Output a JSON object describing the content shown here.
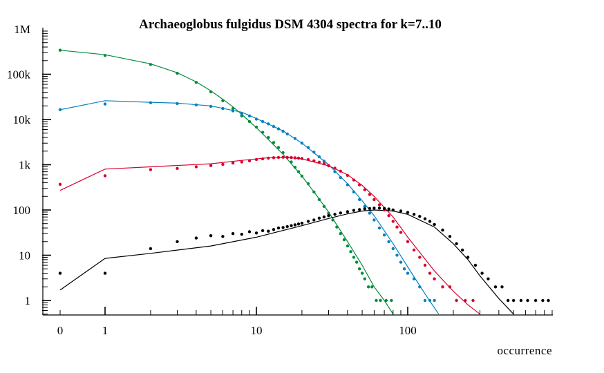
{
  "chart_data": {
    "type": "scatter",
    "title": "Archaeoglobus fulgidus DSM 4304 spectra for k=7..10",
    "xlabel": "occurrence",
    "ylabel": "",
    "x_scale": "log (with 0 at origin)",
    "y_scale": "log",
    "xlim": [
      0,
      1000
    ],
    "ylim": [
      0.5,
      1000000
    ],
    "x_ticks": [
      {
        "value": 0,
        "label": "0"
      },
      {
        "value": 1,
        "label": "1"
      },
      {
        "value": 10,
        "label": "10"
      },
      {
        "value": 100,
        "label": "100"
      }
    ],
    "y_ticks": [
      {
        "value": 1,
        "label": "1"
      },
      {
        "value": 10,
        "label": "10"
      },
      {
        "value": 100,
        "label": "100"
      },
      {
        "value": 1000,
        "label": "1k"
      },
      {
        "value": 10000,
        "label": "10k"
      },
      {
        "value": 100000,
        "label": "100k"
      },
      {
        "value": 1000000,
        "label": "1M"
      }
    ],
    "grid": false,
    "legend": "none",
    "series": [
      {
        "color": "#008c3a",
        "points": [
          [
            0,
            340000
          ],
          [
            1,
            260000
          ],
          [
            2,
            165000
          ],
          [
            3,
            105000
          ],
          [
            4,
            66000
          ],
          [
            5,
            41000
          ],
          [
            6,
            26000
          ],
          [
            7,
            17500
          ],
          [
            8,
            12000
          ],
          [
            9,
            9000
          ],
          [
            10,
            6800
          ],
          [
            11,
            5200
          ],
          [
            12,
            4000
          ],
          [
            13,
            3100
          ],
          [
            14,
            2400
          ],
          [
            15,
            1850
          ],
          [
            16,
            1450
          ],
          [
            17,
            1150
          ],
          [
            18,
            880
          ],
          [
            19,
            700
          ],
          [
            20,
            560
          ],
          [
            22,
            380
          ],
          [
            24,
            250
          ],
          [
            26,
            170
          ],
          [
            28,
            120
          ],
          [
            30,
            85
          ],
          [
            32,
            60
          ],
          [
            34,
            42
          ],
          [
            36,
            30
          ],
          [
            38,
            22
          ],
          [
            40,
            16
          ],
          [
            42,
            12
          ],
          [
            44,
            9
          ],
          [
            46,
            7
          ],
          [
            48,
            5
          ],
          [
            50,
            4
          ],
          [
            52,
            3
          ],
          [
            55,
            2
          ],
          [
            58,
            2
          ],
          [
            62,
            1
          ],
          [
            66,
            1
          ],
          [
            72,
            1
          ],
          [
            78,
            1
          ]
        ],
        "fit": [
          [
            0,
            340000
          ],
          [
            1,
            270000
          ],
          [
            2,
            170000
          ],
          [
            3,
            108000
          ],
          [
            4,
            68000
          ],
          [
            5,
            43000
          ],
          [
            6,
            28000
          ],
          [
            7,
            19000
          ],
          [
            8,
            13000
          ],
          [
            10,
            6600
          ],
          [
            12,
            3600
          ],
          [
            15,
            1700
          ],
          [
            20,
            560
          ],
          [
            25,
            210
          ],
          [
            30,
            90
          ],
          [
            40,
            20
          ],
          [
            50,
            6
          ],
          [
            60,
            2
          ],
          [
            70,
            1
          ],
          [
            80,
            0.5
          ]
        ]
      },
      {
        "color": "#0080c0",
        "points": [
          [
            0,
            16500
          ],
          [
            1,
            22000
          ],
          [
            2,
            23500
          ],
          [
            3,
            22500
          ],
          [
            4,
            21000
          ],
          [
            5,
            19500
          ],
          [
            6,
            17500
          ],
          [
            7,
            15500
          ],
          [
            8,
            13500
          ],
          [
            9,
            12000
          ],
          [
            10,
            10200
          ],
          [
            11,
            9000
          ],
          [
            12,
            8000
          ],
          [
            13,
            7000
          ],
          [
            14,
            6200
          ],
          [
            15,
            5500
          ],
          [
            16,
            4800
          ],
          [
            18,
            3800
          ],
          [
            20,
            3000
          ],
          [
            22,
            2400
          ],
          [
            24,
            1900
          ],
          [
            26,
            1500
          ],
          [
            28,
            1200
          ],
          [
            30,
            950
          ],
          [
            33,
            700
          ],
          [
            36,
            520
          ],
          [
            40,
            360
          ],
          [
            44,
            250
          ],
          [
            48,
            170
          ],
          [
            52,
            120
          ],
          [
            56,
            85
          ],
          [
            60,
            60
          ],
          [
            65,
            40
          ],
          [
            70,
            28
          ],
          [
            75,
            20
          ],
          [
            80,
            14
          ],
          [
            85,
            10
          ],
          [
            90,
            7
          ],
          [
            95,
            5
          ],
          [
            100,
            4
          ],
          [
            110,
            3
          ],
          [
            120,
            2
          ],
          [
            130,
            1
          ],
          [
            140,
            1
          ],
          [
            150,
            1
          ]
        ],
        "fit": [
          [
            0,
            16500
          ],
          [
            1,
            26000
          ],
          [
            2,
            24000
          ],
          [
            3,
            23000
          ],
          [
            5,
            20000
          ],
          [
            8,
            14500
          ],
          [
            10,
            10500
          ],
          [
            15,
            5600
          ],
          [
            20,
            3000
          ],
          [
            30,
            1000
          ],
          [
            40,
            380
          ],
          [
            50,
            160
          ],
          [
            60,
            75
          ],
          [
            80,
            18
          ],
          [
            100,
            5.5
          ],
          [
            130,
            1.4
          ],
          [
            160,
            0.5
          ]
        ]
      },
      {
        "color": "#d8002c",
        "points": [
          [
            0,
            370
          ],
          [
            1,
            570
          ],
          [
            2,
            780
          ],
          [
            3,
            830
          ],
          [
            4,
            900
          ],
          [
            5,
            960
          ],
          [
            6,
            1020
          ],
          [
            7,
            1090
          ],
          [
            8,
            1150
          ],
          [
            9,
            1220
          ],
          [
            10,
            1300
          ],
          [
            11,
            1350
          ],
          [
            12,
            1400
          ],
          [
            13,
            1430
          ],
          [
            14,
            1450
          ],
          [
            15,
            1460
          ],
          [
            16,
            1450
          ],
          [
            17,
            1440
          ],
          [
            18,
            1420
          ],
          [
            19,
            1400
          ],
          [
            20,
            1370
          ],
          [
            22,
            1300
          ],
          [
            24,
            1220
          ],
          [
            26,
            1140
          ],
          [
            28,
            1050
          ],
          [
            30,
            960
          ],
          [
            33,
            840
          ],
          [
            36,
            720
          ],
          [
            40,
            580
          ],
          [
            44,
            460
          ],
          [
            48,
            360
          ],
          [
            52,
            280
          ],
          [
            56,
            220
          ],
          [
            60,
            170
          ],
          [
            65,
            130
          ],
          [
            70,
            100
          ],
          [
            75,
            75
          ],
          [
            80,
            56
          ],
          [
            85,
            42
          ],
          [
            90,
            32
          ],
          [
            100,
            20
          ],
          [
            110,
            13
          ],
          [
            120,
            9
          ],
          [
            130,
            6
          ],
          [
            140,
            4
          ],
          [
            150,
            3
          ],
          [
            170,
            2
          ],
          [
            190,
            2
          ],
          [
            210,
            1
          ],
          [
            240,
            1
          ],
          [
            270,
            1
          ]
        ],
        "fit": [
          [
            0,
            270
          ],
          [
            1,
            800
          ],
          [
            2,
            900
          ],
          [
            5,
            1050
          ],
          [
            8,
            1250
          ],
          [
            12,
            1430
          ],
          [
            16,
            1450
          ],
          [
            20,
            1350
          ],
          [
            30,
            950
          ],
          [
            40,
            600
          ],
          [
            50,
            350
          ],
          [
            60,
            200
          ],
          [
            80,
            70
          ],
          [
            100,
            25
          ],
          [
            150,
            4.5
          ],
          [
            200,
            1.6
          ],
          [
            250,
            0.8
          ],
          [
            300,
            0.5
          ]
        ]
      },
      {
        "color": "#000000",
        "points": [
          [
            0,
            4
          ],
          [
            1,
            4
          ],
          [
            2,
            14
          ],
          [
            3,
            20
          ],
          [
            4,
            24
          ],
          [
            5,
            27
          ],
          [
            6,
            26
          ],
          [
            7,
            30
          ],
          [
            8,
            29
          ],
          [
            9,
            33
          ],
          [
            10,
            31
          ],
          [
            11,
            35
          ],
          [
            12,
            34
          ],
          [
            13,
            37
          ],
          [
            14,
            40
          ],
          [
            15,
            41
          ],
          [
            16,
            43
          ],
          [
            17,
            45
          ],
          [
            18,
            47
          ],
          [
            19,
            49
          ],
          [
            20,
            51
          ],
          [
            22,
            56
          ],
          [
            24,
            60
          ],
          [
            26,
            66
          ],
          [
            28,
            70
          ],
          [
            30,
            75
          ],
          [
            33,
            80
          ],
          [
            36,
            86
          ],
          [
            40,
            92
          ],
          [
            44,
            98
          ],
          [
            48,
            102
          ],
          [
            52,
            106
          ],
          [
            56,
            108
          ],
          [
            60,
            110
          ],
          [
            65,
            110
          ],
          [
            70,
            108
          ],
          [
            75,
            105
          ],
          [
            80,
            100
          ],
          [
            90,
            95
          ],
          [
            100,
            88
          ],
          [
            110,
            80
          ],
          [
            120,
            72
          ],
          [
            130,
            64
          ],
          [
            140,
            56
          ],
          [
            150,
            48
          ],
          [
            170,
            36
          ],
          [
            190,
            26
          ],
          [
            210,
            18
          ],
          [
            230,
            13
          ],
          [
            250,
            9
          ],
          [
            280,
            6
          ],
          [
            310,
            4
          ],
          [
            340,
            3
          ],
          [
            380,
            2
          ],
          [
            420,
            2
          ],
          [
            460,
            1
          ],
          [
            500,
            1
          ],
          [
            560,
            1
          ],
          [
            620,
            1
          ],
          [
            700,
            1
          ],
          [
            780,
            1
          ],
          [
            850,
            1
          ]
        ],
        "fit": [
          [
            0,
            1.7
          ],
          [
            1,
            8.5
          ],
          [
            2,
            11
          ],
          [
            5,
            16
          ],
          [
            10,
            25
          ],
          [
            20,
            45
          ],
          [
            30,
            65
          ],
          [
            40,
            82
          ],
          [
            50,
            95
          ],
          [
            60,
            100
          ],
          [
            80,
            95
          ],
          [
            100,
            80
          ],
          [
            150,
            42
          ],
          [
            200,
            18
          ],
          [
            250,
            8
          ],
          [
            300,
            3.5
          ],
          [
            400,
            1.1
          ],
          [
            500,
            0.5
          ]
        ]
      }
    ]
  }
}
